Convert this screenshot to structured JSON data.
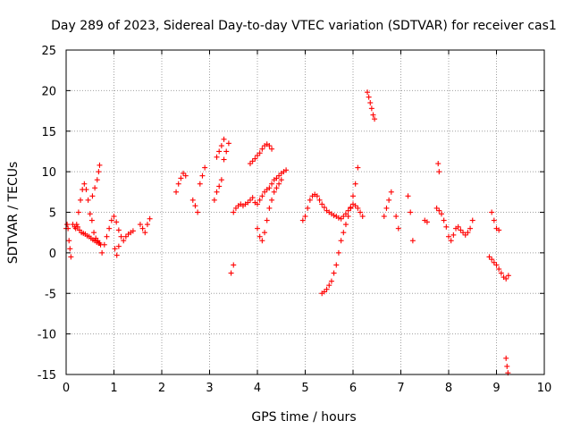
{
  "chart_data": {
    "type": "scatter",
    "title": "Day 289 of 2023, Sidereal Day-to-day VTEC variation (SDTVAR) for receiver cas1",
    "xlabel": "GPS time / hours",
    "ylabel": "SDTVAR / TECUs",
    "xlim": [
      0,
      10
    ],
    "ylim": [
      -15,
      25
    ],
    "xticks": [
      0,
      1,
      2,
      3,
      4,
      5,
      6,
      7,
      8,
      9,
      10
    ],
    "yticks": [
      -15,
      -10,
      -5,
      0,
      5,
      10,
      15,
      20,
      25
    ],
    "grid": true,
    "marker": "+",
    "series": [
      {
        "name": "SDTVAR",
        "color": "#ff0000",
        "x": [
          0.0,
          0.02,
          0.04,
          0.06,
          0.08,
          0.1,
          0.14,
          0.18,
          0.22,
          0.26,
          0.3,
          0.34,
          0.38,
          0.42,
          0.46,
          0.5,
          0.54,
          0.58,
          0.62,
          0.66,
          0.7,
          0.2,
          0.24,
          0.28,
          0.32,
          0.36,
          0.4,
          0.44,
          0.48,
          0.52,
          0.56,
          0.6,
          0.64,
          0.68,
          0.72,
          0.55,
          0.6,
          0.65,
          0.68,
          0.7,
          0.75,
          0.8,
          0.85,
          0.9,
          0.95,
          1.0,
          1.05,
          1.1,
          1.15,
          1.2,
          1.25,
          1.3,
          1.35,
          1.4,
          1.02,
          1.06,
          1.1,
          1.55,
          1.6,
          1.65,
          1.7,
          1.75,
          2.3,
          2.35,
          2.4,
          2.45,
          2.5,
          2.65,
          2.7,
          2.75,
          2.8,
          2.85,
          2.9,
          3.1,
          3.15,
          3.2,
          3.25,
          3.3,
          3.35,
          3.4,
          3.45,
          3.5,
          3.15,
          3.2,
          3.25,
          3.3,
          3.5,
          3.55,
          3.6,
          3.65,
          3.7,
          3.75,
          3.8,
          3.85,
          3.9,
          3.95,
          4.0,
          4.05,
          4.1,
          4.15,
          4.2,
          4.25,
          4.3,
          4.35,
          4.4,
          4.45,
          4.5,
          4.55,
          4.6,
          3.85,
          3.9,
          3.95,
          4.0,
          4.05,
          4.1,
          4.15,
          4.2,
          4.25,
          4.3,
          4.0,
          4.05,
          4.1,
          4.15,
          4.2,
          4.25,
          4.3,
          4.35,
          4.4,
          4.45,
          4.5,
          4.95,
          5.0,
          5.05,
          5.1,
          5.15,
          5.2,
          5.25,
          5.3,
          5.35,
          5.4,
          5.45,
          5.5,
          5.55,
          5.6,
          5.65,
          5.7,
          5.75,
          5.8,
          5.85,
          5.9,
          5.95,
          6.0,
          6.05,
          6.1,
          6.15,
          6.2,
          5.35,
          5.4,
          5.45,
          5.5,
          5.55,
          5.6,
          5.65,
          5.7,
          5.75,
          5.8,
          5.85,
          5.9,
          5.95,
          6.0,
          6.05,
          6.1,
          6.3,
          6.33,
          6.36,
          6.39,
          6.42,
          6.45,
          6.65,
          6.7,
          6.75,
          6.8,
          6.9,
          6.95,
          7.15,
          7.2,
          7.25,
          7.5,
          7.55,
          7.75,
          7.8,
          7.85,
          7.9,
          7.95,
          8.0,
          8.05,
          8.1,
          8.15,
          8.2,
          8.25,
          8.3,
          8.35,
          8.4,
          8.45,
          8.5,
          7.78,
          7.8,
          8.85,
          8.9,
          8.95,
          9.0,
          9.05,
          9.1,
          9.15,
          9.2,
          9.25,
          8.9,
          8.95,
          9.0,
          9.05,
          9.2,
          9.22,
          9.24
        ],
        "y": [
          3.0,
          3.5,
          3.0,
          1.5,
          0.5,
          -0.5,
          3.5,
          3.2,
          3.5,
          5.0,
          6.5,
          7.8,
          8.5,
          7.8,
          6.5,
          4.8,
          4.0,
          2.5,
          1.8,
          1.5,
          1.2,
          3.0,
          3.2,
          2.8,
          2.5,
          2.4,
          2.3,
          2.1,
          2.0,
          1.8,
          1.6,
          1.5,
          1.3,
          1.2,
          1.0,
          7.0,
          8.0,
          9.0,
          10.0,
          10.8,
          0.0,
          1.0,
          2.0,
          3.0,
          4.0,
          4.5,
          3.8,
          2.8,
          2.0,
          1.5,
          2.0,
          2.3,
          2.5,
          2.7,
          0.5,
          -0.3,
          0.8,
          3.5,
          3.0,
          2.5,
          3.5,
          4.2,
          7.5,
          8.5,
          9.2,
          9.8,
          9.5,
          6.5,
          5.8,
          5.0,
          8.5,
          9.5,
          10.5,
          6.5,
          7.5,
          8.2,
          9.0,
          11.5,
          12.5,
          13.5,
          -2.5,
          -1.5,
          11.8,
          12.5,
          13.2,
          14.0,
          5.0,
          5.5,
          5.8,
          6.0,
          5.8,
          6.0,
          6.2,
          6.5,
          6.8,
          6.2,
          6.0,
          6.5,
          7.0,
          7.5,
          7.8,
          8.0,
          8.5,
          9.0,
          9.2,
          9.5,
          9.8,
          10.0,
          10.2,
          11.0,
          11.3,
          11.6,
          12.0,
          12.3,
          12.8,
          13.2,
          13.4,
          13.2,
          12.8,
          3.0,
          2.0,
          1.5,
          2.5,
          4.0,
          5.5,
          6.5,
          7.5,
          8.0,
          8.5,
          9.0,
          4.0,
          4.5,
          5.5,
          6.5,
          7.0,
          7.2,
          7.0,
          6.5,
          6.0,
          5.6,
          5.2,
          5.0,
          4.8,
          4.6,
          4.5,
          4.3,
          4.2,
          4.5,
          4.8,
          5.2,
          5.6,
          6.0,
          5.8,
          5.5,
          5.0,
          4.5,
          -5.0,
          -4.8,
          -4.5,
          -4.0,
          -3.5,
          -2.5,
          -1.5,
          0.0,
          1.5,
          2.5,
          3.5,
          4.5,
          5.5,
          7.0,
          8.5,
          10.5,
          19.8,
          19.2,
          18.5,
          17.8,
          17.0,
          16.5,
          4.5,
          5.5,
          6.5,
          7.5,
          4.5,
          3.0,
          7.0,
          5.0,
          1.5,
          4.0,
          3.8,
          5.5,
          5.2,
          4.8,
          4.0,
          3.2,
          2.0,
          1.5,
          2.2,
          3.0,
          3.2,
          2.8,
          2.5,
          2.2,
          2.5,
          3.0,
          4.0,
          11.0,
          10.0,
          -0.5,
          -0.8,
          -1.2,
          -1.5,
          -2.0,
          -2.5,
          -3.0,
          -3.2,
          -2.8,
          5.0,
          4.0,
          3.0,
          2.8,
          -13.0,
          -14.0,
          -14.8
        ]
      }
    ]
  }
}
